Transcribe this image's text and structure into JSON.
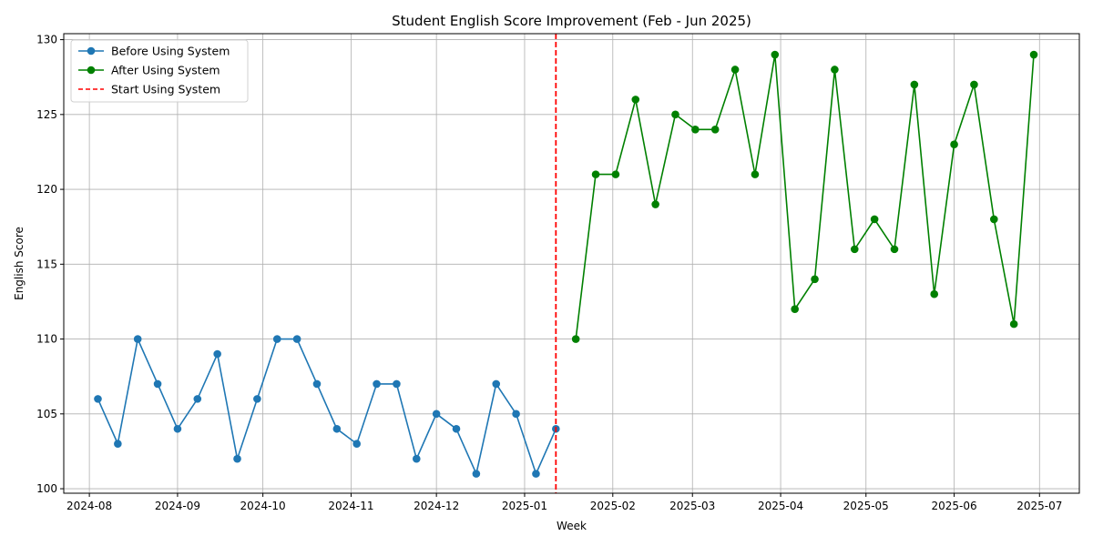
{
  "chart_data": {
    "type": "line",
    "title": "Student English Score Improvement (Feb - Jun 2025)",
    "xlabel": "Week",
    "ylabel": "English Score",
    "ylim": [
      99.7,
      130.4
    ],
    "yticks": [
      100,
      105,
      110,
      115,
      120,
      125,
      130
    ],
    "xlim": [
      "2024-07-23",
      "2025-07-15"
    ],
    "xticks": [
      "2024-08",
      "2024-09",
      "2024-10",
      "2024-11",
      "2024-12",
      "2025-01",
      "2025-02",
      "2025-03",
      "2025-04",
      "2025-05",
      "2025-06",
      "2025-07"
    ],
    "grid": true,
    "legend_position": "top-left",
    "series": [
      {
        "name": "Before Using System",
        "color": "#1f77b4",
        "style": "solid-marker",
        "x": [
          "2024-08-04",
          "2024-08-11",
          "2024-08-18",
          "2024-08-25",
          "2024-09-01",
          "2024-09-08",
          "2024-09-15",
          "2024-09-22",
          "2024-09-29",
          "2024-10-06",
          "2024-10-13",
          "2024-10-20",
          "2024-10-27",
          "2024-11-03",
          "2024-11-10",
          "2024-11-17",
          "2024-11-24",
          "2024-12-01",
          "2024-12-08",
          "2024-12-15",
          "2024-12-22",
          "2024-12-29",
          "2025-01-05",
          "2025-01-12"
        ],
        "y": [
          106,
          103,
          110,
          107,
          104,
          106,
          109,
          102,
          106,
          110,
          110,
          107,
          104,
          103,
          107,
          107,
          102,
          105,
          104,
          101,
          107,
          105,
          101,
          104
        ]
      },
      {
        "name": "After Using System",
        "color": "#008000",
        "style": "solid-marker",
        "x": [
          "2025-01-19",
          "2025-01-26",
          "2025-02-02",
          "2025-02-09",
          "2025-02-16",
          "2025-02-23",
          "2025-03-02",
          "2025-03-09",
          "2025-03-16",
          "2025-03-23",
          "2025-03-30",
          "2025-04-06",
          "2025-04-13",
          "2025-04-20",
          "2025-04-27",
          "2025-05-04",
          "2025-05-11",
          "2025-05-18",
          "2025-05-25",
          "2025-06-01",
          "2025-06-08",
          "2025-06-15",
          "2025-06-22",
          "2025-06-29"
        ],
        "y": [
          110,
          121,
          121,
          126,
          119,
          125,
          124,
          124,
          128,
          121,
          129,
          112,
          114,
          128,
          116,
          118,
          116,
          127,
          113,
          123,
          127,
          118,
          111,
          129
        ]
      }
    ],
    "vline": {
      "name": "Start Using System",
      "x": "2025-01-12",
      "color": "#ff0000",
      "style": "dashed"
    }
  }
}
